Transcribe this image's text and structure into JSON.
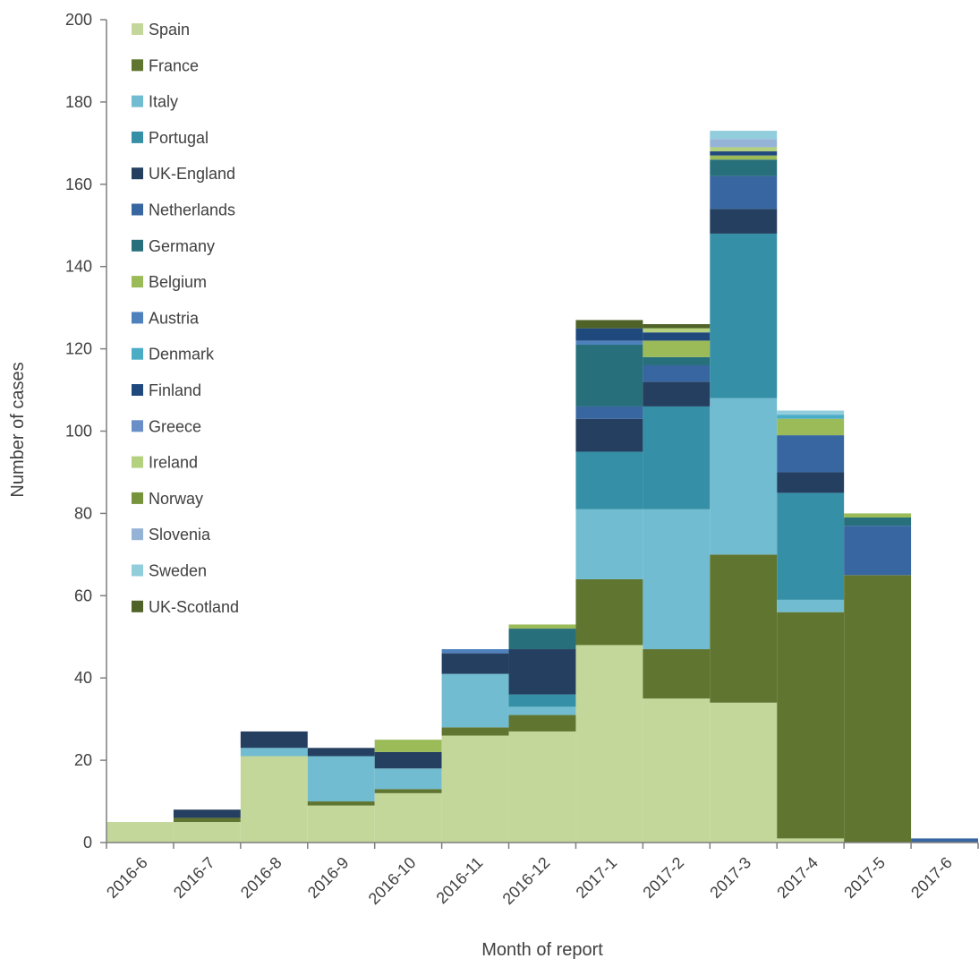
{
  "chart_data": {
    "type": "bar",
    "stacked": true,
    "xlabel": "Month of report",
    "ylabel": "Number of cases",
    "ylim": [
      0,
      200
    ],
    "yticks": [
      0,
      20,
      40,
      60,
      80,
      100,
      120,
      140,
      160,
      180,
      200
    ],
    "grid": false,
    "legend_position": "top-left",
    "categories": [
      "2016-6",
      "2016-7",
      "2016-8",
      "2016-9",
      "2016-10",
      "2016-11",
      "2016-12",
      "2017-1",
      "2017-2",
      "2017-3",
      "2017-4",
      "2017-5",
      "2017-6"
    ],
    "series": [
      {
        "name": "Spain",
        "color": "#c4d79b",
        "values": [
          5,
          5,
          21,
          9,
          12,
          26,
          27,
          48,
          35,
          34,
          1,
          0,
          0
        ]
      },
      {
        "name": "France",
        "color": "#5f7530",
        "values": [
          0,
          1,
          0,
          1,
          1,
          2,
          4,
          16,
          12,
          36,
          55,
          65,
          0
        ]
      },
      {
        "name": "Italy",
        "color": "#71bcd0",
        "values": [
          0,
          0,
          2,
          11,
          5,
          13,
          2,
          17,
          34,
          38,
          3,
          0,
          0
        ]
      },
      {
        "name": "Portugal",
        "color": "#358fa6",
        "values": [
          0,
          0,
          0,
          0,
          0,
          0,
          3,
          14,
          25,
          40,
          26,
          0,
          0
        ]
      },
      {
        "name": "UK-England",
        "color": "#243f60",
        "values": [
          0,
          2,
          4,
          2,
          4,
          5,
          11,
          8,
          6,
          6,
          5,
          0,
          0
        ]
      },
      {
        "name": "Netherlands",
        "color": "#3866a1",
        "values": [
          0,
          0,
          0,
          0,
          0,
          0,
          0,
          3,
          4,
          8,
          9,
          12,
          1
        ]
      },
      {
        "name": "Germany",
        "color": "#276f7b",
        "values": [
          0,
          0,
          0,
          0,
          0,
          0,
          5,
          15,
          2,
          4,
          0,
          2,
          0
        ]
      },
      {
        "name": "Belgium",
        "color": "#9bbb59",
        "values": [
          0,
          0,
          0,
          0,
          3,
          0,
          1,
          0,
          4,
          1,
          4,
          1,
          0
        ]
      },
      {
        "name": "Austria",
        "color": "#4f81bd",
        "values": [
          0,
          0,
          0,
          0,
          0,
          1,
          0,
          1,
          0,
          0,
          0,
          0,
          0
        ]
      },
      {
        "name": "Denmark",
        "color": "#4bacc6",
        "values": [
          0,
          0,
          0,
          0,
          0,
          0,
          0,
          0,
          0,
          0,
          1,
          0,
          0
        ]
      },
      {
        "name": "Finland",
        "color": "#1f497d",
        "values": [
          0,
          0,
          0,
          0,
          0,
          0,
          0,
          3,
          2,
          1,
          0,
          0,
          0
        ]
      },
      {
        "name": "Greece",
        "color": "#6a8fc8",
        "values": [
          0,
          0,
          0,
          0,
          0,
          0,
          0,
          0,
          0,
          0,
          0,
          0,
          0
        ]
      },
      {
        "name": "Ireland",
        "color": "#b3d17f",
        "values": [
          0,
          0,
          0,
          0,
          0,
          0,
          0,
          0,
          1,
          1,
          0,
          0,
          0
        ]
      },
      {
        "name": "Norway",
        "color": "#77933c",
        "values": [
          0,
          0,
          0,
          0,
          0,
          0,
          0,
          0,
          0,
          0,
          0,
          0,
          0
        ]
      },
      {
        "name": "Slovenia",
        "color": "#95b3d7",
        "values": [
          0,
          0,
          0,
          0,
          0,
          0,
          0,
          0,
          0,
          2,
          0,
          0,
          0
        ]
      },
      {
        "name": "Sweden",
        "color": "#92cddc",
        "values": [
          0,
          0,
          0,
          0,
          0,
          0,
          0,
          0,
          0,
          2,
          1,
          0,
          0
        ]
      },
      {
        "name": "UK-Scotland",
        "color": "#4f6228",
        "values": [
          0,
          0,
          0,
          0,
          0,
          0,
          0,
          2,
          1,
          0,
          0,
          0,
          0
        ]
      }
    ]
  }
}
